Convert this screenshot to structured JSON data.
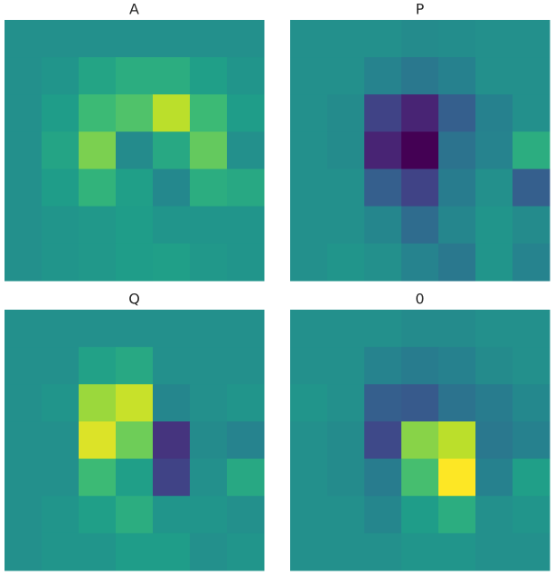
{
  "chart_data": [
    {
      "type": "heatmap",
      "title": "A",
      "colormap": "viridis",
      "zlim": [
        0,
        1
      ],
      "values": [
        [
          0.5,
          0.5,
          0.5,
          0.5,
          0.5,
          0.5,
          0.5
        ],
        [
          0.5,
          0.52,
          0.58,
          0.62,
          0.62,
          0.56,
          0.52
        ],
        [
          0.5,
          0.55,
          0.68,
          0.72,
          0.9,
          0.68,
          0.55
        ],
        [
          0.5,
          0.58,
          0.8,
          0.48,
          0.6,
          0.76,
          0.5
        ],
        [
          0.5,
          0.55,
          0.65,
          0.56,
          0.47,
          0.62,
          0.6
        ],
        [
          0.5,
          0.52,
          0.53,
          0.55,
          0.52,
          0.52,
          0.52
        ],
        [
          0.5,
          0.52,
          0.53,
          0.55,
          0.56,
          0.53,
          0.52
        ]
      ]
    },
    {
      "type": "heatmap",
      "title": "P",
      "colormap": "viridis",
      "zlim": [
        0,
        1
      ],
      "values": [
        [
          0.5,
          0.5,
          0.5,
          0.48,
          0.49,
          0.5,
          0.5
        ],
        [
          0.5,
          0.5,
          0.45,
          0.4,
          0.44,
          0.5,
          0.5
        ],
        [
          0.5,
          0.48,
          0.2,
          0.1,
          0.3,
          0.44,
          0.5
        ],
        [
          0.5,
          0.48,
          0.1,
          0,
          0.38,
          0.45,
          0.62
        ],
        [
          0.5,
          0.5,
          0.3,
          0.2,
          0.42,
          0.5,
          0.3
        ],
        [
          0.5,
          0.5,
          0.46,
          0.35,
          0.46,
          0.52,
          0.48
        ],
        [
          0.5,
          0.52,
          0.5,
          0.45,
          0.4,
          0.52,
          0.45
        ]
      ]
    },
    {
      "type": "heatmap",
      "title": "Q",
      "colormap": "viridis",
      "zlim": [
        0,
        1
      ],
      "values": [
        [
          0.5,
          0.5,
          0.5,
          0.5,
          0.5,
          0.5,
          0.5
        ],
        [
          0.5,
          0.5,
          0.57,
          0.6,
          0.5,
          0.5,
          0.5
        ],
        [
          0.5,
          0.52,
          0.85,
          0.92,
          0.46,
          0.5,
          0.52
        ],
        [
          0.5,
          0.5,
          0.95,
          0.78,
          0.15,
          0.48,
          0.45
        ],
        [
          0.5,
          0.5,
          0.68,
          0.56,
          0.2,
          0.5,
          0.6
        ],
        [
          0.5,
          0.52,
          0.56,
          0.62,
          0.52,
          0.52,
          0.5
        ],
        [
          0.5,
          0.52,
          0.52,
          0.55,
          0.55,
          0.5,
          0.52
        ]
      ]
    },
    {
      "type": "heatmap",
      "title": "0",
      "colormap": "viridis",
      "zlim": [
        0,
        1
      ],
      "values": [
        [
          0.5,
          0.5,
          0.5,
          0.48,
          0.48,
          0.5,
          0.5
        ],
        [
          0.5,
          0.5,
          0.45,
          0.42,
          0.44,
          0.48,
          0.5
        ],
        [
          0.52,
          0.5,
          0.3,
          0.28,
          0.38,
          0.42,
          0.47
        ],
        [
          0.5,
          0.48,
          0.22,
          0.82,
          0.9,
          0.4,
          0.44
        ],
        [
          0.5,
          0.48,
          0.42,
          0.7,
          1,
          0.44,
          0.56
        ],
        [
          0.5,
          0.5,
          0.46,
          0.55,
          0.62,
          0.5,
          0.52
        ],
        [
          0.5,
          0.5,
          0.5,
          0.52,
          0.52,
          0.5,
          0.5
        ]
      ]
    }
  ]
}
